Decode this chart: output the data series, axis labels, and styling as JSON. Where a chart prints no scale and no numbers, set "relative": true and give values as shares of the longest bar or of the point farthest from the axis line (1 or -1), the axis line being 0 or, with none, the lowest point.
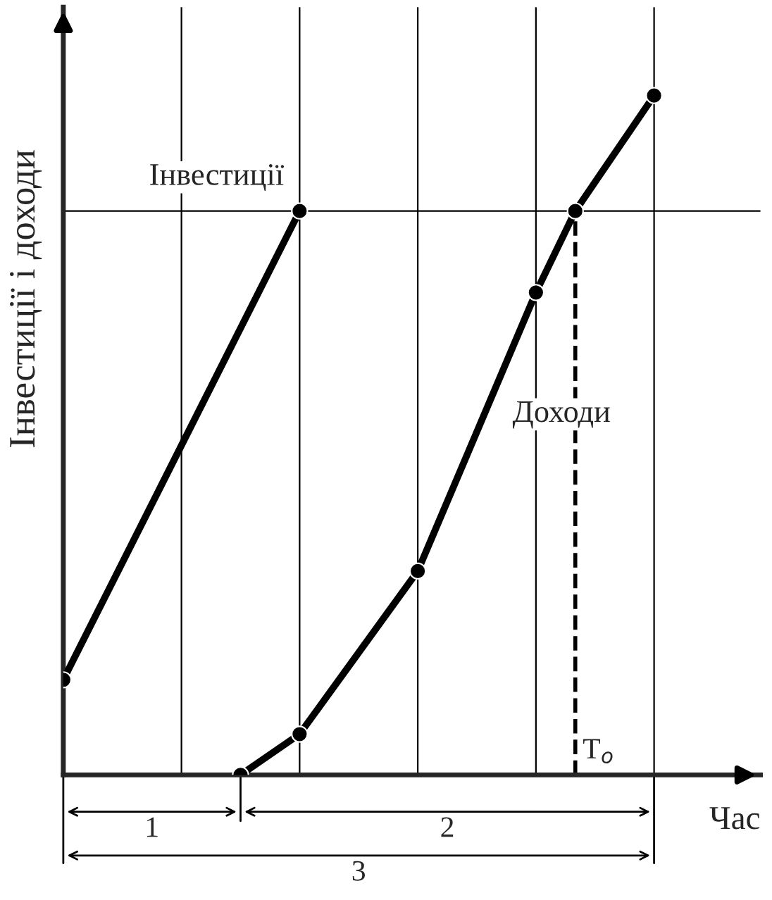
{
  "chart_data": {
    "type": "line",
    "relative": true,
    "xlabel": "Час",
    "ylabel": "Інвестиції і доходи",
    "ylim": [
      0,
      1.13
    ],
    "marker": "circle",
    "line_style": "solid",
    "categories": [
      null,
      null,
      null,
      null,
      null,
      null,
      null,
      null,
      null,
      null,
      null,
      null,
      null,
      null,
      null,
      null,
      null,
      null,
      null,
      null,
      null,
      null,
      null,
      null,
      null,
      null,
      null,
      null,
      null,
      null,
      null,
      null,
      null,
      null,
      null,
      null
    ],
    "series": [
      {
        "name": "Інвестиції",
        "color": "#000000",
        "values": [
          0.14,
          null,
          null,
          null,
          null,
          null,
          null,
          null,
          null,
          null,
          null,
          null,
          0.83,
          null,
          null,
          null,
          null,
          null,
          null,
          null,
          null,
          null,
          null,
          null,
          null,
          null,
          null,
          null,
          null,
          null,
          null,
          null,
          null,
          null,
          null,
          null
        ]
      },
      {
        "name": "Доходи",
        "color": "#000000",
        "values": [
          null,
          null,
          null,
          null,
          null,
          null,
          null,
          null,
          null,
          0,
          null,
          null,
          0.06,
          null,
          null,
          null,
          null,
          null,
          0.3,
          null,
          null,
          null,
          null,
          null,
          0.71,
          null,
          0.83,
          null,
          null,
          null,
          1,
          null,
          null,
          null,
          null,
          null
        ]
      }
    ],
    "grid": "x",
    "ref_lines": [
      {
        "axis": "y",
        "value": 0.83,
        "color": "#000000"
      }
    ],
    "annotations": [
      "1",
      "2",
      "3",
      "T$_{o}$"
    ]
  }
}
